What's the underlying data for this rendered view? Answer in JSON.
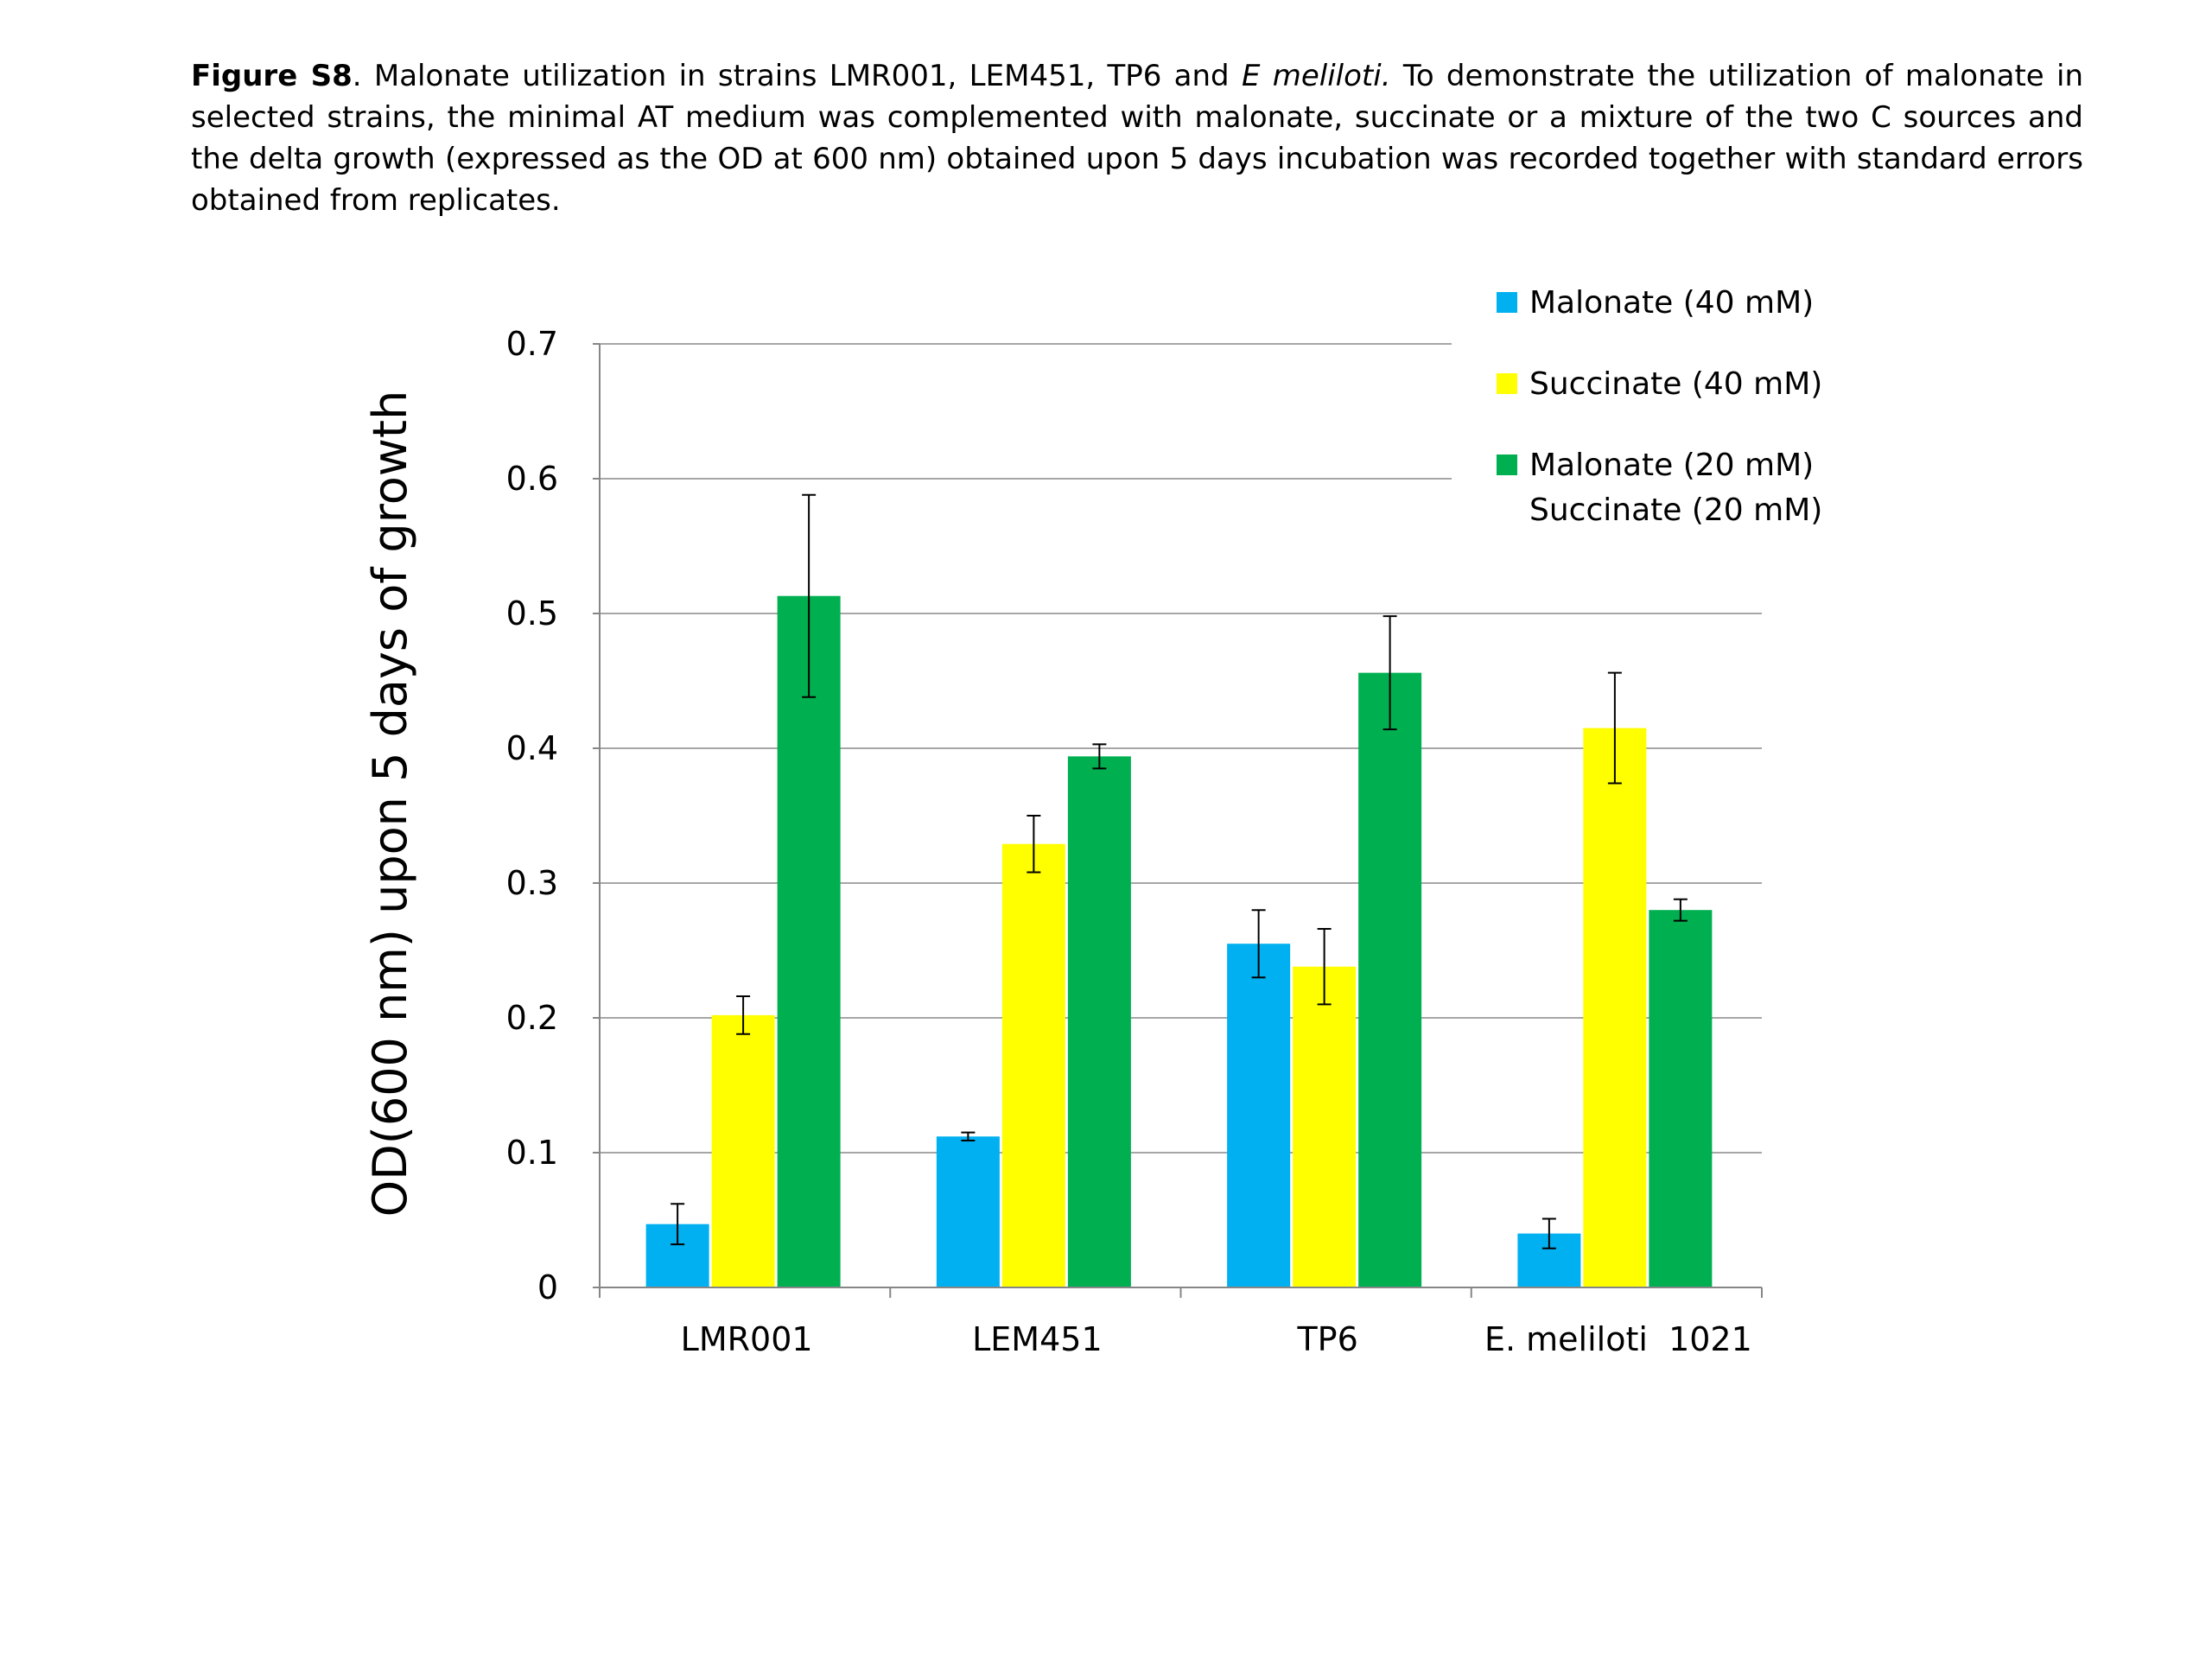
{
  "caption": {
    "label": "Figure S8",
    "text1": ". Malonate utilization in strains LMR001, LEM451, TP6 and ",
    "italic": "E meliloti.",
    "text2": " To demonstrate the utilization of malonate in selected strains, the minimal AT medium was complemented with malonate, succinate or a mixture of the two C sources and the delta growth (expressed as the OD at 600 nm) obtained upon 5 days incubation was recorded  together with standard errors obtained from replicates."
  },
  "chart_data": {
    "type": "bar",
    "title": "",
    "xlabel": "",
    "ylabel": "OD(600 nm) upon 5 days of growth",
    "ylim": [
      0,
      0.7
    ],
    "yticks": [
      "0",
      "0.1",
      "0.2",
      "0.3",
      "0.4",
      "0.5",
      "0.6",
      "0.7"
    ],
    "grid": true,
    "legend_position": "top-right",
    "categories": [
      "LMR001",
      "LEM451",
      "TP6",
      "E. meliloti  1021"
    ],
    "series": [
      {
        "name": "Malonate (40 mM)",
        "color": "#00b0f0",
        "values": [
          0.047,
          0.112,
          0.255,
          0.04
        ],
        "errors": [
          0.015,
          0.003,
          0.025,
          0.011
        ]
      },
      {
        "name": "Succinate (40 mM)",
        "color": "#ffff00",
        "values": [
          0.202,
          0.329,
          0.238,
          0.415
        ],
        "errors": [
          0.014,
          0.021,
          0.028,
          0.041
        ]
      },
      {
        "name": "Malonate (20 mM)",
        "name_line2": "Succinate (20 mM)",
        "color": "#00b050",
        "values": [
          0.513,
          0.394,
          0.456,
          0.28
        ],
        "errors": [
          0.075,
          0.009,
          0.042,
          0.008
        ]
      }
    ]
  }
}
